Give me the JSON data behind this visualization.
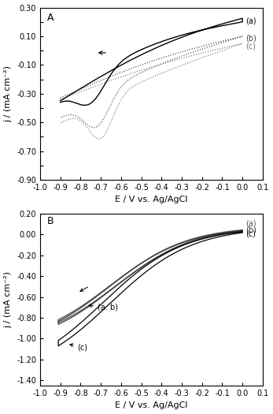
{
  "panel_A": {
    "label": "A",
    "xlim": [
      -1.0,
      0.1
    ],
    "ylim": [
      -0.9,
      0.3
    ],
    "xticks": [
      -1.0,
      -0.9,
      -0.8,
      -0.7,
      -0.6,
      -0.5,
      -0.4,
      -0.3,
      -0.2,
      -0.1,
      0.0,
      0.1
    ],
    "yticks": [
      -0.9,
      -0.8,
      -0.7,
      -0.6,
      -0.5,
      -0.4,
      -0.3,
      -0.2,
      -0.1,
      0.0,
      0.1,
      0.2,
      0.3
    ],
    "ytick_labels": [
      "-0.90",
      "",
      "-0.70",
      "",
      "-0.50",
      "",
      "-0.30",
      "",
      "-0.10",
      "",
      "0.10",
      "",
      "0.30"
    ],
    "xtick_labels": [
      "-1.0",
      "-0.9",
      "-0.8",
      "-0.7",
      "-0.6",
      "-0.5",
      "-0.4",
      "-0.3",
      "-0.2",
      "-0.1",
      "0.0",
      "0.1"
    ],
    "xlabel": "E / V vs. Ag/AgCl",
    "ylabel": "j / (mA cm⁻²)"
  },
  "panel_B": {
    "label": "B",
    "xlim": [
      -1.0,
      0.1
    ],
    "ylim": [
      -1.45,
      0.2
    ],
    "xticks": [
      -1.0,
      -0.9,
      -0.8,
      -0.7,
      -0.6,
      -0.5,
      -0.4,
      -0.3,
      -0.2,
      -0.1,
      0.0,
      0.1
    ],
    "yticks": [
      -1.4,
      -1.2,
      -1.0,
      -0.8,
      -0.6,
      -0.4,
      -0.2,
      0.0,
      0.2
    ],
    "ytick_labels": [
      "-1.40",
      "-1.20",
      "-1.00",
      "-0.80",
      "-0.60",
      "-0.40",
      "-0.20",
      "0.00",
      "0.20"
    ],
    "xtick_labels": [
      "-1.0",
      "-0.9",
      "-0.8",
      "-0.7",
      "-0.6",
      "-0.5",
      "-0.4",
      "-0.3",
      "-0.2",
      "-0.1",
      "0.0",
      "0.1"
    ],
    "xlabel": "E / V vs. Ag/AgCl",
    "ylabel": "j / (mA cm⁻²)"
  }
}
